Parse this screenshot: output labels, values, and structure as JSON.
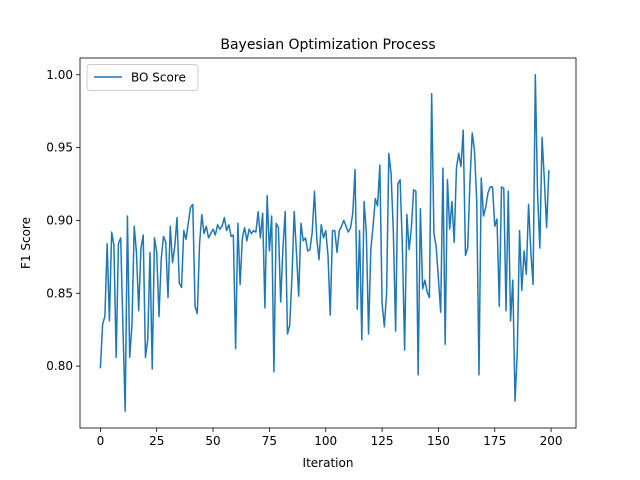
{
  "chart_data": {
    "type": "line",
    "title": "Bayesian Optimization Process",
    "xlabel": "Iteration",
    "ylabel": "F1 Score",
    "xlim": [
      -9.05,
      211.05
    ],
    "ylim": [
      0.7575,
      1.0115
    ],
    "xticks": [
      0,
      25,
      50,
      75,
      100,
      125,
      150,
      175,
      200
    ],
    "yticks": [
      0.8,
      0.85,
      0.9,
      0.95,
      1.0
    ],
    "xtick_labels": [
      "0",
      "25",
      "50",
      "75",
      "100",
      "125",
      "150",
      "175",
      "200"
    ],
    "ytick_labels": [
      "0.80",
      "0.85",
      "0.90",
      "0.95",
      "1.00"
    ],
    "grid": false,
    "legend_position": "upper left",
    "series": [
      {
        "name": "BO Score",
        "color": "#1f77b4",
        "x_start": 0,
        "x_step": 1,
        "y": [
          0.799,
          0.829,
          0.834,
          0.884,
          0.831,
          0.892,
          0.883,
          0.806,
          0.884,
          0.888,
          0.827,
          0.769,
          0.903,
          0.806,
          0.828,
          0.896,
          0.878,
          0.838,
          0.881,
          0.89,
          0.806,
          0.818,
          0.878,
          0.798,
          0.888,
          0.878,
          0.834,
          0.874,
          0.889,
          0.885,
          0.847,
          0.896,
          0.871,
          0.882,
          0.902,
          0.857,
          0.854,
          0.893,
          0.887,
          0.898,
          0.909,
          0.911,
          0.841,
          0.836,
          0.884,
          0.904,
          0.891,
          0.896,
          0.888,
          0.891,
          0.894,
          0.89,
          0.897,
          0.894,
          0.896,
          0.902,
          0.893,
          0.897,
          0.889,
          0.89,
          0.812,
          0.898,
          0.856,
          0.888,
          0.895,
          0.886,
          0.894,
          0.891,
          0.893,
          0.892,
          0.906,
          0.888,
          0.905,
          0.84,
          0.917,
          0.879,
          0.903,
          0.796,
          0.898,
          0.895,
          0.844,
          0.881,
          0.906,
          0.822,
          0.828,
          0.861,
          0.906,
          0.878,
          0.848,
          0.898,
          0.886,
          0.888,
          0.879,
          0.88,
          0.892,
          0.92,
          0.888,
          0.873,
          0.897,
          0.888,
          0.893,
          0.876,
          0.835,
          0.893,
          0.893,
          0.878,
          0.893,
          0.896,
          0.9,
          0.896,
          0.892,
          0.895,
          0.905,
          0.935,
          0.839,
          0.893,
          0.818,
          0.913,
          0.892,
          0.822,
          0.88,
          0.896,
          0.915,
          0.91,
          0.938,
          0.843,
          0.827,
          0.85,
          0.946,
          0.932,
          0.892,
          0.824,
          0.925,
          0.928,
          0.882,
          0.811,
          0.904,
          0.88,
          0.895,
          0.921,
          0.92,
          0.794,
          0.908,
          0.853,
          0.859,
          0.851,
          0.847,
          0.987,
          0.891,
          0.882,
          0.86,
          0.837,
          0.936,
          0.815,
          0.928,
          0.894,
          0.913,
          0.885,
          0.936,
          0.946,
          0.937,
          0.962,
          0.876,
          0.881,
          0.927,
          0.96,
          0.948,
          0.913,
          0.794,
          0.929,
          0.903,
          0.909,
          0.919,
          0.923,
          0.923,
          0.896,
          0.901,
          0.841,
          0.923,
          0.922,
          0.838,
          0.92,
          0.831,
          0.859,
          0.776,
          0.81,
          0.893,
          0.852,
          0.879,
          0.863,
          0.911,
          0.879,
          0.856,
          1.0,
          0.918,
          0.881,
          0.957,
          0.928,
          0.895,
          0.934
        ]
      }
    ]
  }
}
